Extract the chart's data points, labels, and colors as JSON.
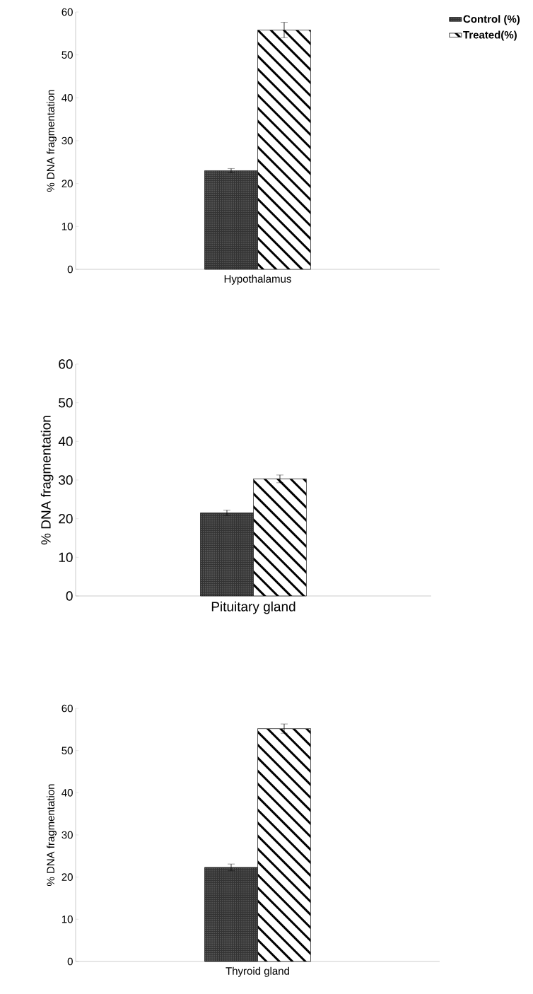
{
  "chart_data": [
    {
      "type": "bar",
      "categories": [
        "Hypothalamus"
      ],
      "ylabel": "% DNA fragmentation",
      "ylim": [
        0,
        60
      ],
      "yticks": [
        0,
        10,
        20,
        30,
        40,
        50,
        60
      ],
      "legend": "top right",
      "series": [
        {
          "name": "Control (%)",
          "color": "#333333",
          "values": [
            23
          ],
          "errors": [
            0.5
          ]
        },
        {
          "name": "Treated(%)",
          "color": "#000000",
          "values": [
            55.8
          ],
          "errors": [
            1.8
          ]
        }
      ]
    },
    {
      "type": "bar",
      "categories": [
        "Pituitary gland"
      ],
      "ylabel": "% DNA fragmentation",
      "ylim": [
        0,
        60
      ],
      "yticks": [
        0,
        10,
        20,
        30,
        40,
        50,
        60
      ],
      "series": [
        {
          "color": "#333333",
          "values": [
            21.5
          ],
          "errors": [
            0.7
          ]
        },
        {
          "color": "#000000",
          "values": [
            30.3
          ],
          "errors": [
            1
          ]
        }
      ]
    },
    {
      "type": "bar",
      "categories": [
        "Thyroid gland"
      ],
      "ylabel": "% DNA fragmentation",
      "ylim": [
        0,
        60
      ],
      "yticks": [
        0,
        10,
        20,
        30,
        40,
        50,
        60
      ],
      "series": [
        {
          "color": "#333333",
          "values": [
            22.3
          ],
          "errors": [
            0.8
          ]
        },
        {
          "color": "#000000",
          "values": [
            55.2
          ],
          "errors": [
            1.1
          ]
        }
      ]
    }
  ]
}
